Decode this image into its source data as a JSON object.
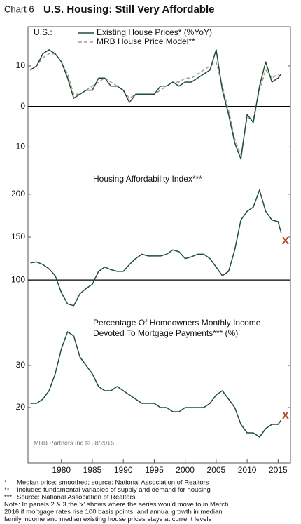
{
  "header": {
    "chart_label": "Chart 6",
    "title": "U.S. Housing: Still Very Affordable"
  },
  "source": "MRB Partners Inc © 08/2015",
  "footnotes": [
    {
      "mark": "*",
      "text": "Median price; smoothed; source: National Association of Realtors"
    },
    {
      "mark": "**",
      "text": "Includes fundamental variables of supply and demand for housing"
    },
    {
      "mark": "***",
      "text": "Source: National Association of Realtors"
    }
  ],
  "note": [
    "Note: In panels 2 & 3 the 'x' shows where the series would move to in March",
    "2016 if mortgage rates rise 100 basis points, and annual growth in median",
    "family income and median existing house prices stays at current levels"
  ],
  "chart_data": [
    {
      "type": "line",
      "label": "U.S.:",
      "x": [
        1975,
        1976,
        1977,
        1978,
        1979,
        1980,
        1981,
        1982,
        1983,
        1984,
        1985,
        1986,
        1987,
        1988,
        1989,
        1990,
        1991,
        1992,
        1993,
        1994,
        1995,
        1996,
        1997,
        1998,
        1999,
        2000,
        2001,
        2002,
        2003,
        2004,
        2005,
        2006,
        2007,
        2008,
        2009,
        2010,
        2011,
        2012,
        2013,
        2014,
        2015,
        2015.5
      ],
      "xlim": [
        1974.6,
        2017
      ],
      "ylim": [
        -16,
        19
      ],
      "yticks": [
        -10,
        0,
        10
      ],
      "hline": 0,
      "series": [
        {
          "name": "Existing House Prices* (%YoY)",
          "color": "#1f4e3d",
          "dash": false,
          "values": [
            9,
            10,
            13,
            14,
            13,
            11,
            7,
            2,
            3,
            4,
            4,
            7,
            7,
            5,
            5,
            4,
            1,
            3,
            3,
            3,
            3,
            5,
            5,
            6,
            5,
            6,
            6,
            7,
            8,
            9,
            14,
            4,
            -2,
            -9,
            -13,
            -2,
            -4,
            5,
            11,
            6,
            7,
            8
          ]
        },
        {
          "name": "MRB House Price Model**",
          "color": "#a89a80",
          "dash": true,
          "values": [
            9,
            10,
            12,
            13,
            13,
            11,
            8,
            3,
            3,
            4,
            5,
            6,
            7,
            6,
            5,
            4,
            2,
            3,
            3,
            3,
            3,
            4,
            5,
            6,
            6,
            7,
            7,
            8,
            9,
            10,
            11,
            5,
            -1,
            -8,
            -12,
            -3,
            -3,
            4,
            9,
            7,
            8,
            7
          ]
        }
      ]
    },
    {
      "type": "line",
      "title": [
        "Housing Affordability Index***"
      ],
      "x": [
        1975,
        1976,
        1977,
        1978,
        1979,
        1980,
        1981,
        1982,
        1983,
        1984,
        1985,
        1986,
        1987,
        1988,
        1989,
        1990,
        1991,
        1992,
        1993,
        1994,
        1995,
        1996,
        1997,
        1998,
        1999,
        2000,
        2001,
        2002,
        2003,
        2004,
        2005,
        2006,
        2007,
        2008,
        2009,
        2010,
        2011,
        2012,
        2013,
        2014,
        2015,
        2015.5
      ],
      "xlim": [
        1974.6,
        2017
      ],
      "ylim": [
        60,
        222
      ],
      "yticks": [
        100,
        150,
        200
      ],
      "hline": 100,
      "series": [
        {
          "color": "#1f4e3d",
          "values": [
            120,
            121,
            118,
            113,
            105,
            85,
            72,
            70,
            84,
            90,
            95,
            110,
            115,
            112,
            110,
            110,
            118,
            125,
            130,
            128,
            128,
            128,
            130,
            135,
            133,
            125,
            127,
            130,
            130,
            125,
            115,
            105,
            110,
            135,
            170,
            180,
            185,
            205,
            180,
            170,
            168,
            155
          ]
        }
      ],
      "projection": {
        "x": 2016.2,
        "value": 145,
        "label": "X",
        "color": "#b5402a"
      }
    },
    {
      "type": "line",
      "title": [
        "Percentage Of Homeowners Monthly Income",
        "Devoted To Mortgage Payments*** (%)"
      ],
      "x": [
        1975,
        1976,
        1977,
        1978,
        1979,
        1980,
        1981,
        1982,
        1983,
        1984,
        1985,
        1986,
        1987,
        1988,
        1989,
        1990,
        1991,
        1992,
        1993,
        1994,
        1995,
        1996,
        1997,
        1998,
        1999,
        2000,
        2001,
        2002,
        2003,
        2004,
        2005,
        2006,
        2007,
        2008,
        2009,
        2010,
        2011,
        2012,
        2013,
        2014,
        2015,
        2015.5
      ],
      "xlim": [
        1974.6,
        2017
      ],
      "ylim": [
        11,
        41
      ],
      "yticks": [
        20,
        30
      ],
      "xticks": [
        1980,
        1985,
        1990,
        1995,
        2000,
        2005,
        2010,
        2015
      ],
      "series": [
        {
          "color": "#1f4e3d",
          "values": [
            21,
            21,
            22,
            24,
            28,
            34,
            38,
            37,
            32,
            30,
            28,
            25,
            24,
            24,
            25,
            24,
            23,
            22,
            21,
            21,
            21,
            20,
            20,
            19,
            19,
            20,
            20,
            20,
            20,
            21,
            23,
            24,
            22,
            20,
            16,
            14,
            14,
            13,
            15,
            16,
            16,
            17
          ]
        }
      ],
      "projection": {
        "x": 2016.2,
        "value": 18,
        "label": "X",
        "color": "#b5402a"
      }
    }
  ]
}
